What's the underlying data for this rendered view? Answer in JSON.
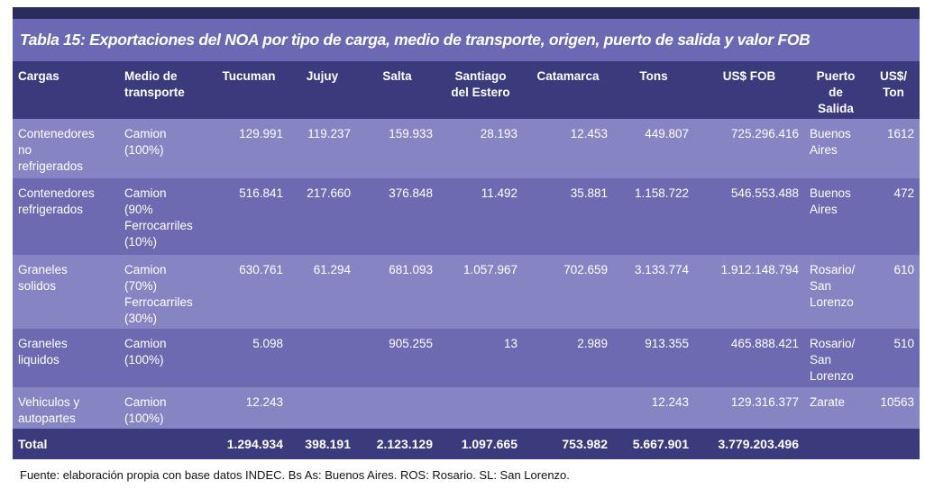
{
  "title": "Tabla 15: Exportaciones del NOA por tipo de carga, medio de transporte, origen, puerto de salida y valor FOB",
  "table": {
    "header": [
      "Cargas",
      "Medio de\ntransporte",
      "Tucuman",
      "Jujuy",
      "Salta",
      "Santiago\ndel Estero",
      "Catamarca",
      "Tons",
      "US$ FOB",
      "Puerto\nde\nSalida",
      "US$/\nTon"
    ],
    "rows": [
      [
        "Contenedores\nno\nrefrigerados",
        "Camion\n(100%)",
        "129.991",
        "119.237",
        "159.933",
        "28.193",
        "12.453",
        "449.807",
        "725.296.416",
        "Buenos\nAires",
        "1612"
      ],
      [
        "Contenedores\nrefrigerados",
        "Camion\n(90%\nFerrocarriles\n(10%)",
        "516.841",
        "217.660",
        "376.848",
        "11.492",
        "35.881",
        "1.158.722",
        "546.553.488",
        "Buenos\nAires",
        "472"
      ],
      [
        "Graneles\nsolidos",
        "Camion\n(70%)\nFerrocarriles\n(30%)",
        "630.761",
        "61.294",
        "681.093",
        "1.057.967",
        "702.659",
        "3.133.774",
        "1.912.148.794",
        "Rosario/\nSan\nLorenzo",
        "610"
      ],
      [
        "Graneles\nliquidos",
        "Camion\n(100%)",
        "5.098",
        null,
        "905.255",
        "13",
        "2.989",
        "913.355",
        "465.888.421",
        "Rosario/\nSan\nLorenzo",
        "510"
      ],
      [
        "Vehiculos y\nautopartes",
        "Camion\n(100%)",
        "12.243",
        null,
        null,
        null,
        null,
        "12.243",
        "129.316.377",
        "Zarate",
        "10563"
      ]
    ],
    "total": [
      "Total",
      null,
      "1.294.934",
      "398.191",
      "2.123.129",
      "1.097.665",
      "753.982",
      "5.667.901",
      "3.779.203.496",
      null,
      null
    ]
  },
  "footnote": "Fuente: elaboración propia con base datos INDEC. Bs As: Buenos Aires. ROS: Rosario. SL: San Lorenzo."
}
